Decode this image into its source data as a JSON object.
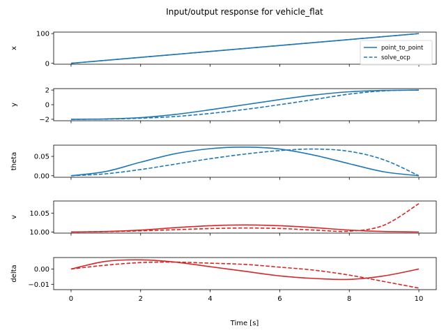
{
  "chart_data": {
    "type": "line",
    "title": "Input/output response for vehicle_flat",
    "xlabel": "Time [s]",
    "xlim": [
      -0.5,
      10.5
    ],
    "x_ticks": [
      0,
      2,
      4,
      6,
      8,
      10
    ],
    "x_tick_labels": [
      "0",
      "2",
      "4",
      "6",
      "8",
      "10"
    ],
    "colors": {
      "states": "#1f77b4",
      "inputs": "#d62728",
      "frame": "#000000"
    },
    "legend": {
      "placement": "right",
      "entries": [
        {
          "label": "point_to_point",
          "linestyle": "solid"
        },
        {
          "label": "solve_ocp",
          "linestyle": "dashed"
        }
      ]
    },
    "panels": [
      {
        "ylabel": "x",
        "color": "states",
        "ylim": [
          -3,
          105
        ],
        "y_ticks": [
          0,
          100
        ],
        "y_tick_labels": [
          "0",
          "100"
        ],
        "series": [
          {
            "name": "point_to_point",
            "linestyle": "solid",
            "x": [
              0,
              1,
              2,
              3,
              4,
              5,
              6,
              7,
              8,
              9,
              10
            ],
            "y": [
              0,
              10,
              20,
              30,
              40,
              50,
              60,
              70,
              80,
              90,
              100
            ]
          },
          {
            "name": "solve_ocp",
            "linestyle": "dashed",
            "x": [
              0,
              1,
              2,
              3,
              4,
              5,
              6,
              7,
              8,
              9,
              10
            ],
            "y": [
              0,
              10,
              20,
              30,
              40,
              50,
              60,
              70,
              80,
              90,
              100
            ]
          }
        ]
      },
      {
        "ylabel": "y",
        "color": "states",
        "ylim": [
          -2.2,
          2.2
        ],
        "y_ticks": [
          -2,
          0,
          2
        ],
        "y_tick_labels": [
          "−2",
          "0",
          "2"
        ],
        "series": [
          {
            "name": "point_to_point",
            "linestyle": "solid",
            "x": [
              0,
              1,
              2,
              3,
              4,
              5,
              6,
              7,
              8,
              9,
              10
            ],
            "y": [
              -2,
              -1.95,
              -1.77,
              -1.33,
              -0.7,
              0,
              0.7,
              1.33,
              1.77,
              1.95,
              2
            ]
          },
          {
            "name": "solve_ocp",
            "linestyle": "dashed",
            "x": [
              0,
              1,
              2,
              3,
              4,
              5,
              6,
              7,
              8,
              9,
              10
            ],
            "y": [
              -2,
              -1.98,
              -1.85,
              -1.62,
              -1.2,
              -0.65,
              0,
              0.72,
              1.45,
              1.9,
              2
            ]
          }
        ]
      },
      {
        "ylabel": "theta",
        "color": "states",
        "ylim": [
          -0.004,
          0.079
        ],
        "y_ticks": [
          0,
          0.05
        ],
        "y_tick_labels": [
          "0.00",
          "0.05"
        ],
        "series": [
          {
            "name": "point_to_point",
            "linestyle": "solid",
            "x": [
              0,
              1,
              2,
              3,
              4,
              5,
              6,
              7,
              8,
              9,
              10
            ],
            "y": [
              0,
              0.011,
              0.035,
              0.057,
              0.07,
              0.074,
              0.069,
              0.053,
              0.031,
              0.01,
              0
            ]
          },
          {
            "name": "solve_ocp",
            "linestyle": "dashed",
            "x": [
              0,
              1,
              2,
              3,
              4,
              5,
              6,
              7,
              8,
              9,
              10
            ],
            "y": [
              0,
              0.005,
              0.016,
              0.03,
              0.044,
              0.056,
              0.065,
              0.069,
              0.063,
              0.041,
              0
            ]
          }
        ]
      },
      {
        "ylabel": "v",
        "color": "inputs",
        "ylim": [
          9.997,
          10.082
        ],
        "y_ticks": [
          10.0,
          10.05
        ],
        "y_tick_labels": [
          "10.00",
          "10.05"
        ],
        "series": [
          {
            "name": "point_to_point",
            "linestyle": "solid",
            "x": [
              0,
              1,
              2,
              3,
              4,
              5,
              6,
              7,
              8,
              9,
              10
            ],
            "y": [
              10.0,
              10.0012,
              10.005,
              10.0115,
              10.0165,
              10.0185,
              10.0165,
              10.0115,
              10.005,
              10.0012,
              10.0
            ]
          },
          {
            "name": "solve_ocp",
            "linestyle": "dashed",
            "x": [
              0,
              1,
              2,
              3,
              4,
              5,
              6,
              7,
              8,
              9,
              10
            ],
            "y": [
              10.0,
              10.0008,
              10.003,
              10.006,
              10.009,
              10.0105,
              10.0092,
              10.005,
              10.002,
              10.018,
              10.075
            ]
          }
        ]
      },
      {
        "ylabel": "delta",
        "color": "inputs",
        "ylim": [
          -0.0135,
          0.0075
        ],
        "y_ticks": [
          -0.01,
          0
        ],
        "y_tick_labels": [
          "−0.01",
          "0.00"
        ],
        "series": [
          {
            "name": "point_to_point",
            "linestyle": "solid",
            "x": [
              0,
              1,
              2,
              3,
              4,
              5,
              6,
              7,
              8,
              9,
              10
            ],
            "y": [
              0,
              0.005,
              0.006,
              0.0045,
              0.0015,
              -0.0015,
              -0.0045,
              -0.0062,
              -0.0068,
              -0.0045,
              0
            ]
          },
          {
            "name": "solve_ocp",
            "linestyle": "dashed",
            "x": [
              0,
              1,
              2,
              3,
              4,
              5,
              6,
              7,
              8,
              9,
              10
            ],
            "y": [
              0,
              0.0025,
              0.0042,
              0.0045,
              0.0038,
              0.003,
              0.0012,
              -0.0008,
              -0.004,
              -0.0082,
              -0.0125
            ]
          }
        ]
      }
    ]
  }
}
